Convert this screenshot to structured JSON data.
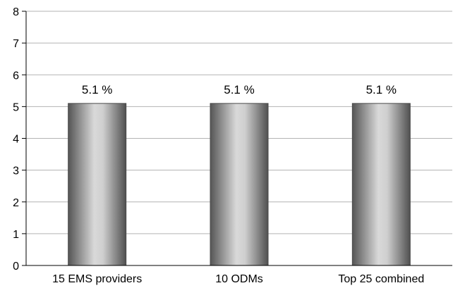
{
  "chart_data": {
    "type": "bar",
    "categories": [
      "15 EMS providers",
      "10 ODMs",
      "Top 25 combined"
    ],
    "values": [
      5.1,
      5.1,
      5.1
    ],
    "data_labels": [
      "5.1 %",
      "5.1 %",
      "5.1 %"
    ],
    "title": "",
    "xlabel": "",
    "ylabel": "",
    "ylim": [
      0,
      8
    ],
    "yticks": [
      0,
      1,
      2,
      3,
      4,
      5,
      6,
      7,
      8
    ],
    "grid": true,
    "legend": "none",
    "colors": {
      "bar_edge": "#4a4a4a",
      "bar_light": "#d9d9d9",
      "bar_dark": "#555555",
      "gridline": "#b3b3b3",
      "axis": "#000000"
    }
  }
}
